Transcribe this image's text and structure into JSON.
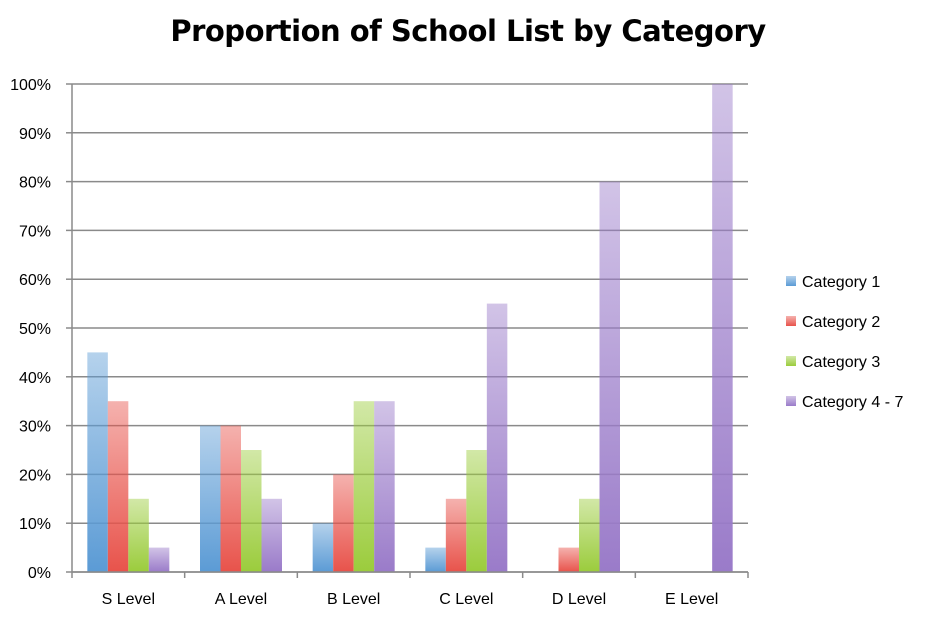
{
  "chart_data": {
    "type": "bar",
    "title": "Proportion of School List by Category",
    "xlabel": "",
    "ylabel": "",
    "categories": [
      "S Level",
      "A Level",
      "B Level",
      "C Level",
      "D Level",
      "E Level"
    ],
    "series": [
      {
        "name": "Category 1",
        "color": "#5b9bd5",
        "values": [
          45,
          30,
          10,
          5,
          0,
          0
        ]
      },
      {
        "name": "Category 2",
        "color": "#e8534b",
        "values": [
          35,
          30,
          20,
          15,
          5,
          0
        ]
      },
      {
        "name": "Category 3",
        "color": "#9bcc3c",
        "values": [
          15,
          25,
          35,
          25,
          15,
          0
        ]
      },
      {
        "name": "Category 4 - 7",
        "color": "#9a7bc9",
        "values": [
          5,
          15,
          35,
          55,
          80,
          100
        ]
      }
    ],
    "ylim": [
      0,
      100
    ],
    "y_ticks": [
      "0%",
      "10%",
      "20%",
      "30%",
      "40%",
      "50%",
      "60%",
      "70%",
      "80%",
      "90%",
      "100%"
    ],
    "grid": true,
    "legend": "right"
  }
}
